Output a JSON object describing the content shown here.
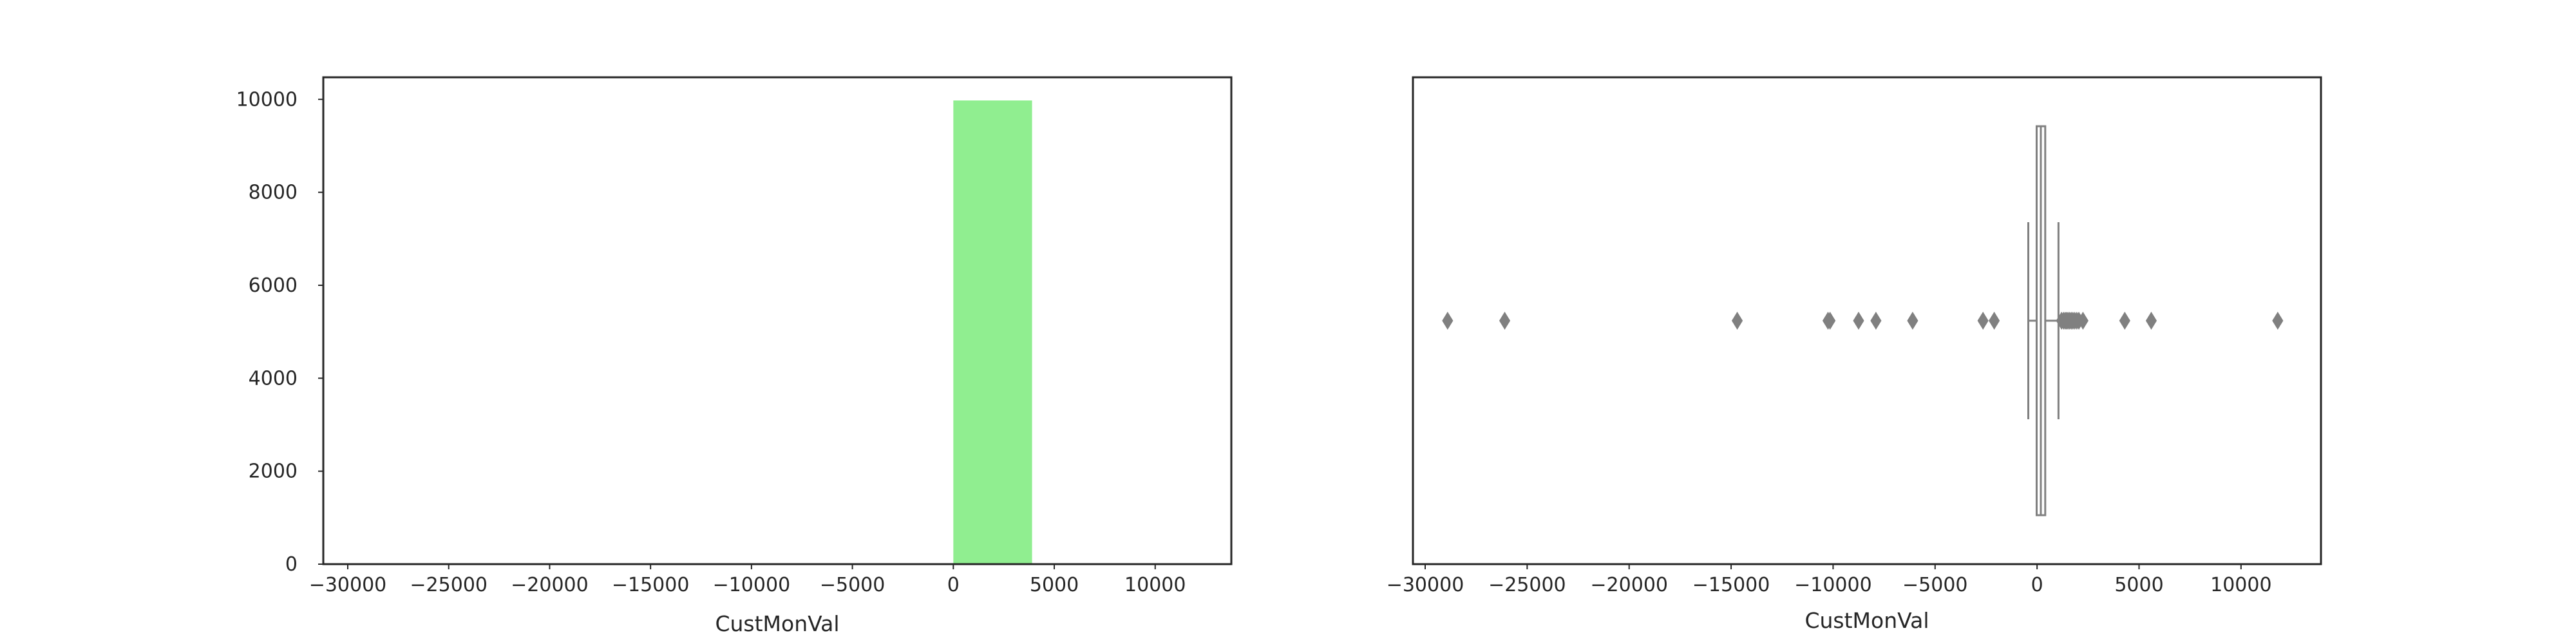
{
  "chart_data": [
    {
      "type": "histogram",
      "xlabel": "CustMonVal",
      "ylabel": "",
      "xlim": [
        -31212,
        13772
      ],
      "ylim": [
        0,
        10475
      ],
      "xticks": [
        -30000,
        -25000,
        -20000,
        -15000,
        -10000,
        -5000,
        0,
        5000,
        10000
      ],
      "xtick_labels": [
        "−30000",
        "−25000",
        "−20000",
        "−15000",
        "−10000",
        "−5000",
        "0",
        "5000",
        "10000"
      ],
      "yticks": [
        0,
        2000,
        4000,
        6000,
        8000,
        10000
      ],
      "ytick_labels": [
        "0",
        "2000",
        "4000",
        "6000",
        "8000",
        "10000"
      ],
      "bars": [
        {
          "x0": -28000,
          "x1": -24000,
          "count": 0
        },
        {
          "x0": -24000,
          "x1": -20000,
          "count": 0
        },
        {
          "x0": -20000,
          "x1": -16000,
          "count": 0
        },
        {
          "x0": -16000,
          "x1": -12000,
          "count": 0
        },
        {
          "x0": -12000,
          "x1": -8000,
          "count": 0
        },
        {
          "x0": -8000,
          "x1": -4000,
          "count": 0
        },
        {
          "x0": -4000,
          "x1": 0,
          "count": 0
        },
        {
          "x0": 0,
          "x1": 3900,
          "count": 9976
        },
        {
          "x0": 3900,
          "x1": 7800,
          "count": 0
        },
        {
          "x0": 7800,
          "x1": 11800,
          "count": 0
        }
      ],
      "bar_color": "#90ee90",
      "grid": false
    },
    {
      "type": "boxplot",
      "orientation": "horizontal",
      "xlabel": "CustMonVal",
      "xlim": [
        -30600,
        13920
      ],
      "xticks": [
        -30000,
        -25000,
        -20000,
        -15000,
        -10000,
        -5000,
        0,
        5000,
        10000
      ],
      "xtick_labels": [
        "−30000",
        "−25000",
        "−20000",
        "−15000",
        "−10000",
        "−5000",
        "0",
        "5000",
        "10000"
      ],
      "box": {
        "whisker_low": -430,
        "q1": -20,
        "median": 185,
        "q3": 400,
        "whisker_high": 1050
      },
      "outliers": [
        -28900,
        -26100,
        -14700,
        -10250,
        -10150,
        -8750,
        -7900,
        -6100,
        -2650,
        -2100,
        1200,
        1300,
        1380,
        1450,
        1520,
        1600,
        1680,
        1760,
        1850,
        1950,
        2050,
        2250,
        4300,
        5600,
        11800
      ],
      "color": "#808080",
      "grid": false
    }
  ]
}
